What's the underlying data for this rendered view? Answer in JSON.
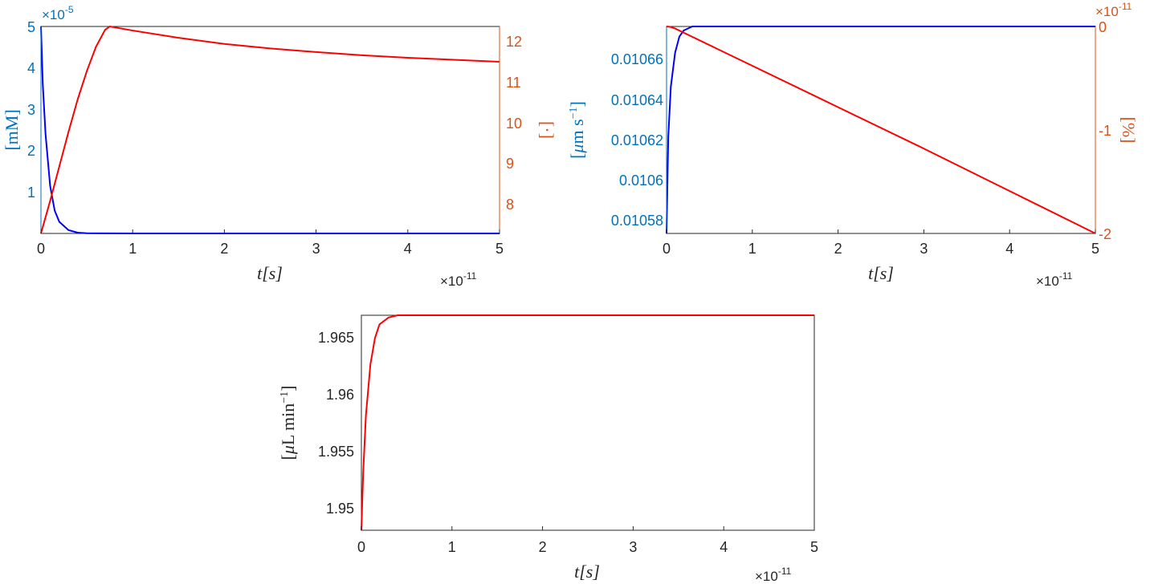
{
  "colors": {
    "left_axis": "#0072BD",
    "right_axis": "#D95319",
    "axis": "#262626",
    "blue_line": "#0000FF",
    "red_line": "#FF0000"
  },
  "chart_data": [
    {
      "type": "line",
      "xlabel": "t[s]",
      "x_multiplier": "×10^-11",
      "x_multiplier_parts": {
        "base": "×10",
        "exp": "-11"
      },
      "xlim": [
        0,
        5
      ],
      "xticks": [
        "0",
        "1",
        "2",
        "3",
        "4",
        "5"
      ],
      "ylabel_left": "[mM]",
      "ylim_left": [
        0,
        5
      ],
      "yticks_left": [
        "1",
        "2",
        "3",
        "4",
        "5"
      ],
      "y_multiplier_left": {
        "base": "×10",
        "exp": "-5"
      },
      "ylabel_right": "[·]",
      "ylim_right": [
        7.3,
        12.4
      ],
      "yticks_right": [
        "8",
        "9",
        "10",
        "11",
        "12"
      ],
      "series": [
        {
          "axis": "left",
          "color": "blue",
          "x": [
            0,
            0.02,
            0.05,
            0.1,
            0.15,
            0.2,
            0.3,
            0.4,
            0.5,
            1,
            2,
            3,
            4,
            5
          ],
          "y": [
            5,
            3.6,
            2.4,
            1.15,
            0.55,
            0.28,
            0.08,
            0.02,
            0.005,
            0,
            0,
            0,
            0,
            0
          ]
        },
        {
          "axis": "right",
          "color": "red",
          "x": [
            0,
            0.1,
            0.2,
            0.3,
            0.4,
            0.5,
            0.6,
            0.7,
            0.75,
            0.8,
            1,
            1.5,
            2,
            2.5,
            3,
            3.5,
            4,
            4.5,
            5
          ],
          "y": [
            7.3,
            8.1,
            8.95,
            9.8,
            10.6,
            11.3,
            11.9,
            12.32,
            12.4,
            12.38,
            12.3,
            12.12,
            11.97,
            11.86,
            11.77,
            11.69,
            11.63,
            11.58,
            11.53
          ]
        }
      ]
    },
    {
      "type": "line",
      "xlabel": "t[s]",
      "x_multiplier": "×10^-11",
      "x_multiplier_parts": {
        "base": "×10",
        "exp": "-11"
      },
      "xlim": [
        0,
        5
      ],
      "xticks": [
        "0",
        "1",
        "2",
        "3",
        "4",
        "5"
      ],
      "ylabel_left": "[μm s^-1]",
      "ylim_left": [
        0.010572,
        0.010675
      ],
      "yticks_left": [
        "0.01058",
        "0.0106",
        "0.01062",
        "0.01064",
        "0.01066"
      ],
      "yticks_left_values": [
        0.01058,
        0.0106,
        0.01062,
        0.01064,
        0.01066
      ],
      "ylabel_right": "[%]",
      "ylim_right": [
        -2,
        0
      ],
      "yticks_right": [
        "-2",
        "-1",
        "0"
      ],
      "y_multiplier_right": {
        "base": "×10",
        "exp": "-11"
      },
      "series": [
        {
          "axis": "left",
          "color": "blue",
          "x": [
            0,
            0.02,
            0.05,
            0.1,
            0.15,
            0.2,
            0.25,
            0.3,
            0.5,
            1,
            2,
            3,
            4,
            5
          ],
          "y": [
            0.010572,
            0.01062,
            0.010645,
            0.010662,
            0.01067,
            0.010673,
            0.010674,
            0.010675,
            0.010675,
            0.010675,
            0.010675,
            0.010675,
            0.010675,
            0.010675
          ]
        },
        {
          "axis": "right",
          "color": "red",
          "x": [
            0,
            0.05,
            0.1,
            0.2,
            1,
            2,
            3,
            4,
            5
          ],
          "y": [
            0,
            -0.005,
            -0.02,
            -0.06,
            -0.38,
            -0.78,
            -1.18,
            -1.59,
            -2
          ]
        }
      ]
    },
    {
      "type": "line",
      "xlabel": "t[s]",
      "x_multiplier": "×10^-11",
      "x_multiplier_parts": {
        "base": "×10",
        "exp": "-11"
      },
      "xlim": [
        0,
        5
      ],
      "xticks": [
        "0",
        "1",
        "2",
        "3",
        "4",
        "5"
      ],
      "ylabel_left": "[μL min^-1]",
      "ylim_left": [
        1.9479,
        1.9668
      ],
      "yticks_left": [
        "1.95",
        "1.955",
        "1.96",
        "1.965"
      ],
      "yticks_left_values": [
        1.95,
        1.955,
        1.96,
        1.965
      ],
      "series": [
        {
          "axis": "left",
          "color": "red",
          "x": [
            0,
            0.02,
            0.05,
            0.1,
            0.15,
            0.2,
            0.3,
            0.4,
            0.6,
            1,
            2,
            3,
            4,
            5
          ],
          "y": [
            1.9479,
            1.953,
            1.958,
            1.9625,
            1.9648,
            1.966,
            1.9666,
            1.9668,
            1.9668,
            1.9668,
            1.9668,
            1.9668,
            1.9668,
            1.9668
          ]
        }
      ]
    }
  ]
}
